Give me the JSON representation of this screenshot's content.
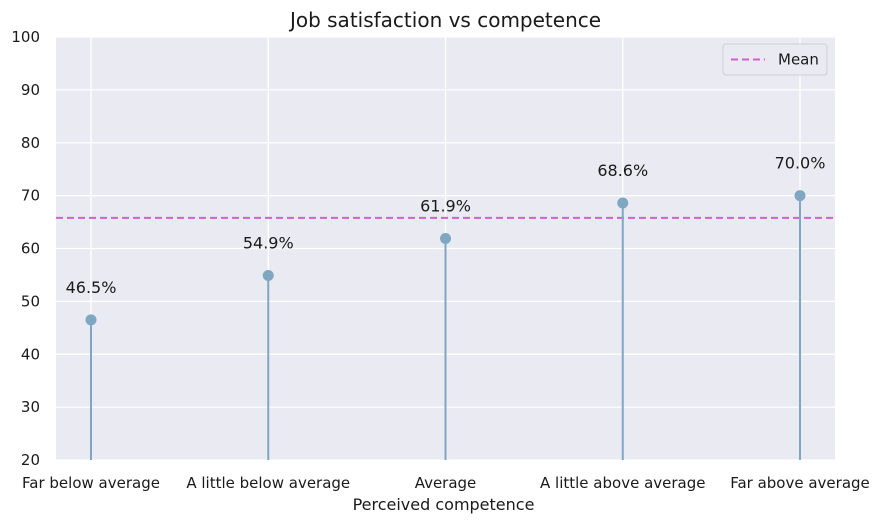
{
  "chart_data": {
    "type": "lollipop",
    "title": "Job satisfaction vs competence",
    "xlabel": "Perceived competence",
    "ylabel": "",
    "categories": [
      "Far below average",
      "A little below average",
      "Average",
      "A little above average",
      "Far above average"
    ],
    "values": [
      46.5,
      54.9,
      61.9,
      68.6,
      70.0
    ],
    "data_labels": [
      "46.5%",
      "54.9%",
      "61.9%",
      "68.6%",
      "70.0%"
    ],
    "ylim": [
      20,
      100
    ],
    "yticks": [
      20,
      30,
      40,
      50,
      60,
      70,
      80,
      90,
      100
    ],
    "mean": 65.8,
    "legend": {
      "entries": [
        "Mean"
      ],
      "position": "top-right"
    },
    "grid": true,
    "colors": {
      "stem": "#7fa7c1",
      "marker": "#7fa7c1",
      "mean_line": "#d65fd0",
      "plot_bg": "#eaeaf2",
      "grid": "#ffffff"
    }
  }
}
